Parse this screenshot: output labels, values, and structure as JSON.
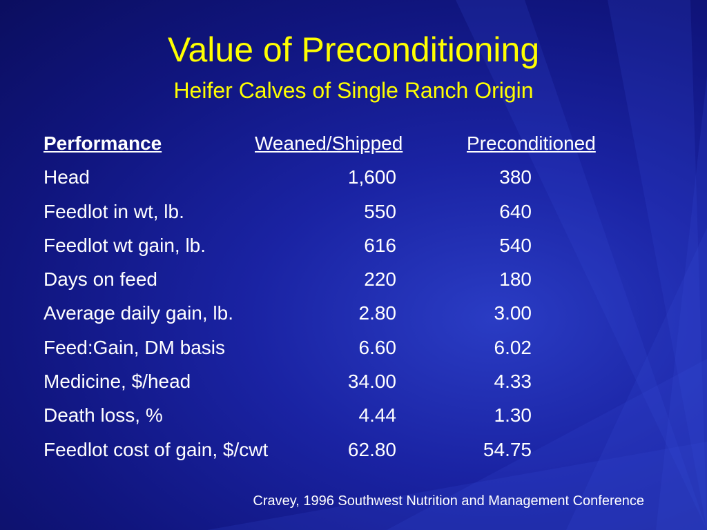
{
  "slide": {
    "title": "Value of Preconditioning",
    "subtitle": "Heifer Calves of Single Ranch Origin",
    "footer": "Cravey, 1996 Southwest Nutrition and Management Conference",
    "colors": {
      "title": "#ffff00",
      "text": "#ffffff",
      "background": "#1a23a3"
    }
  },
  "table": {
    "headers": {
      "performance": "Performance",
      "weaned_shipped": "Weaned/Shipped",
      "preconditioned": "Preconditioned"
    },
    "rows": [
      {
        "label": "Head",
        "weaned_shipped": "1,600",
        "preconditioned": "380"
      },
      {
        "label": "Feedlot in wt, lb.",
        "weaned_shipped": "550",
        "preconditioned": "640"
      },
      {
        "label": "Feedlot wt gain, lb.",
        "weaned_shipped": "616",
        "preconditioned": "540"
      },
      {
        "label": "Days on feed",
        "weaned_shipped": "220",
        "preconditioned": "180"
      },
      {
        "label": "Average daily gain, lb.",
        "weaned_shipped": "2.80",
        "preconditioned": "3.00"
      },
      {
        "label": "Feed:Gain, DM basis",
        "weaned_shipped": "6.60",
        "preconditioned": "6.02"
      },
      {
        "label": "Medicine, $/head",
        "weaned_shipped": "34.00",
        "preconditioned": "4.33"
      },
      {
        "label": "Death loss, %",
        "weaned_shipped": "4.44",
        "preconditioned": "1.30"
      },
      {
        "label": "Feedlot cost of gain, $/cwt",
        "weaned_shipped": "62.80",
        "preconditioned": "54.75"
      }
    ]
  }
}
